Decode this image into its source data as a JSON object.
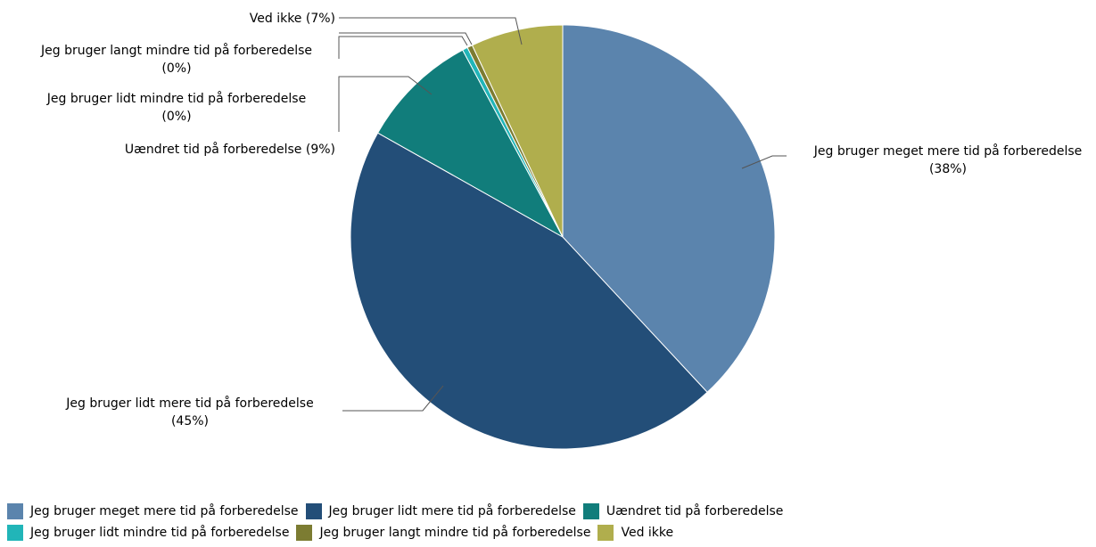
{
  "chart_data": {
    "type": "pie",
    "title": "",
    "slices": [
      {
        "name": "Jeg bruger meget mere tid på forberedelse",
        "value": 38,
        "label_name": "Jeg bruger meget mere tid på forberedelse",
        "label_pct": "(38%)",
        "color": "#5b84ad"
      },
      {
        "name": "Jeg bruger lidt mere tid på forberedelse",
        "value": 45,
        "label_name": "Jeg bruger lidt mere tid på forberedelse",
        "label_pct": "(45%)",
        "color": "#234e78"
      },
      {
        "name": "Uændret tid på forberedelse",
        "value": 9,
        "label_name": "Uændret tid på forberedelse (9%)",
        "label_pct": "",
        "color": "#117d7b"
      },
      {
        "name": "Jeg bruger lidt mindre tid på forberedelse",
        "value": 0.4,
        "label_name": "Jeg bruger lidt mindre tid på forberedelse",
        "label_pct": "(0%)",
        "color": "#21b5b8"
      },
      {
        "name": "Jeg bruger langt mindre tid på forberedelse",
        "value": 0.4,
        "label_name": "Jeg bruger langt mindre tid på forberedelse",
        "label_pct": "(0%)",
        "color": "#7c7c32"
      },
      {
        "name": "Ved ikke",
        "value": 7,
        "label_name": "Ved ikke (7%)",
        "label_pct": "",
        "color": "#b0ae4d"
      }
    ],
    "legend_position": "bottom"
  },
  "legend": {
    "rows": [
      [
        {
          "label": "Jeg bruger meget mere tid på forberedelse",
          "color": "#5b84ad"
        },
        {
          "label": "Jeg bruger lidt mere tid på forberedelse",
          "color": "#234e78"
        },
        {
          "label": "Uændret tid på forberedelse",
          "color": "#117d7b"
        }
      ],
      [
        {
          "label": "Jeg bruger lidt mindre tid på forberedelse",
          "color": "#21b5b8"
        },
        {
          "label": "Jeg bruger langt mindre tid på forberedelse",
          "color": "#7c7c32"
        },
        {
          "label": "Ved ikke",
          "color": "#b0ae4d"
        }
      ]
    ]
  }
}
